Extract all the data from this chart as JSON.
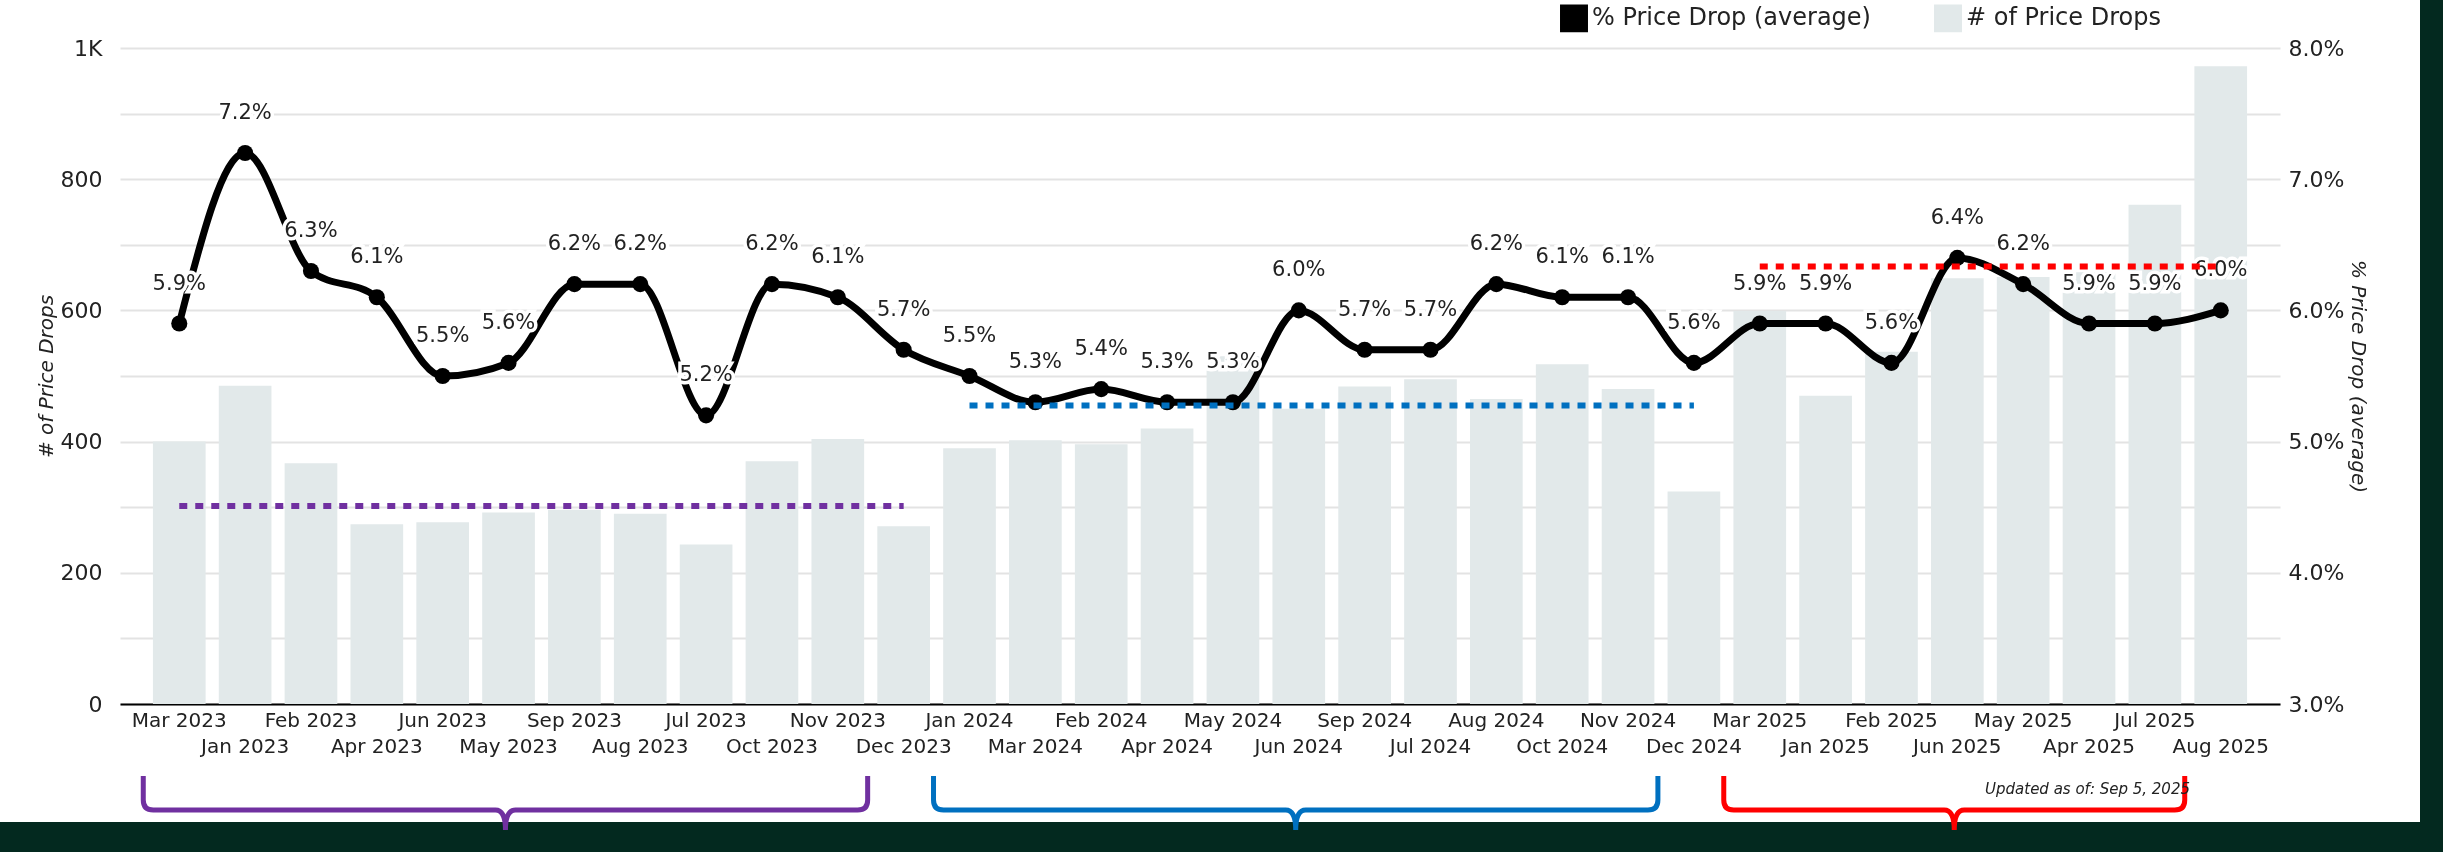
{
  "chart_data": {
    "type": "bar",
    "categories": [
      "Mar 2023",
      "Jan 2023",
      "Feb 2023",
      "Apr 2023",
      "Jun 2023",
      "May 2023",
      "Sep 2023",
      "Aug 2023",
      "Jul 2023",
      "Oct 2023",
      "Nov 2023",
      "Dec 2023",
      "Jan 2024",
      "Mar 2024",
      "Feb 2024",
      "Apr 2024",
      "May 2024",
      "Jun 2024",
      "Sep 2024",
      "Jul 2024",
      "Aug 2024",
      "Oct 2024",
      "Nov 2024",
      "Dec 2024",
      "Mar 2025",
      "Jan 2025",
      "Feb 2025",
      "Jun 2025",
      "May 2025",
      "Apr 2025",
      "Jul 2025",
      "Aug 2025"
    ],
    "series": [
      {
        "name": "% Price Drop (average)",
        "type": "line",
        "axis": "y2",
        "color": "#000000",
        "marker": "circle",
        "line_style": "solid",
        "values": [
          5.9,
          7.2,
          6.3,
          6.1,
          5.5,
          5.6,
          6.2,
          6.2,
          5.2,
          6.2,
          6.1,
          5.7,
          5.5,
          5.3,
          5.4,
          5.3,
          5.3,
          6.0,
          5.7,
          5.7,
          6.2,
          6.1,
          6.1,
          5.6,
          5.9,
          5.9,
          5.6,
          6.4,
          6.2,
          5.9,
          5.9,
          6.0
        ],
        "value_labels": [
          "5.9%",
          "7.2%",
          "6.3%",
          "6.1%",
          "5.5%",
          "5.6%",
          "6.2%",
          "6.2%",
          "5.2%",
          "6.2%",
          "6.1%",
          "5.7%",
          "5.5%",
          "5.3%",
          "5.4%",
          "5.3%",
          "5.3%",
          "6.0%",
          "5.7%",
          "5.7%",
          "6.2%",
          "6.1%",
          "6.1%",
          "5.6%",
          "5.9%",
          "5.9%",
          "5.6%",
          "6.4%",
          "6.2%",
          "5.9%",
          "5.9%",
          "6.0%"
        ]
      },
      {
        "name": "# of Price Drops",
        "color": "#e2e9ea",
        "values": [
          400,
          485,
          367,
          274,
          277,
          292,
          296,
          290,
          243,
          370,
          404,
          271,
          390,
          402,
          396,
          420,
          530,
          450,
          484,
          495,
          465,
          518,
          480,
          324,
          599,
          470,
          537,
          649,
          651,
          658,
          761,
          972
        ]
      },
      {
        "type": "line",
        "color": "#7030a0",
        "marker": "none",
        "line_style": "dotted",
        "values": [
          302,
          302,
          302,
          302,
          302,
          302,
          302,
          302,
          302,
          302,
          302,
          302,
          null,
          null,
          null,
          null,
          null,
          null,
          null,
          null,
          null,
          null,
          null,
          null,
          null,
          null,
          null,
          null,
          null,
          null,
          null,
          null
        ]
      },
      {
        "type": "line",
        "color": "#0070c0",
        "marker": "none",
        "line_style": "dotted",
        "values": [
          null,
          null,
          null,
          null,
          null,
          null,
          null,
          null,
          null,
          null,
          null,
          null,
          455,
          455,
          455,
          455,
          455,
          455,
          455,
          455,
          455,
          455,
          455,
          455,
          null,
          null,
          null,
          null,
          null,
          null,
          null,
          null
        ]
      },
      {
        "type": "line",
        "color": "#ff0000",
        "marker": "none",
        "line_style": "dotted",
        "values": [
          null,
          null,
          null,
          null,
          null,
          null,
          null,
          null,
          null,
          null,
          null,
          null,
          null,
          null,
          null,
          null,
          null,
          null,
          null,
          null,
          null,
          null,
          null,
          null,
          667,
          667,
          667,
          667,
          667,
          667,
          667,
          667
        ]
      }
    ],
    "ylabel": "# of Price Drops",
    "y2label": "% Price Drop (average)",
    "ylim": [
      0,
      1000
    ],
    "yticks": [
      0,
      {
        "value": 100,
        "label": null
      },
      200,
      {
        "value": 300,
        "label": null
      },
      400,
      {
        "value": 500,
        "label": null
      },
      600,
      {
        "value": 700,
        "label": null
      },
      800,
      {
        "value": 900,
        "label": null
      },
      {
        "value": 1000,
        "label": "1K"
      }
    ],
    "y2lim": [
      3,
      8
    ],
    "y2ticks": [
      {
        "value": 3,
        "label": "3.0%"
      },
      {
        "value": 4,
        "label": "4.0%"
      },
      {
        "value": 5,
        "label": "5.0%"
      },
      {
        "value": 6,
        "label": "6.0%"
      },
      {
        "value": 7,
        "label": "7.0%"
      },
      {
        "value": 8,
        "label": "8.0%"
      }
    ],
    "grid": "y",
    "legend": "top right",
    "annotations": [
      "Updated as of: Sep 5, 2025"
    ]
  }
}
